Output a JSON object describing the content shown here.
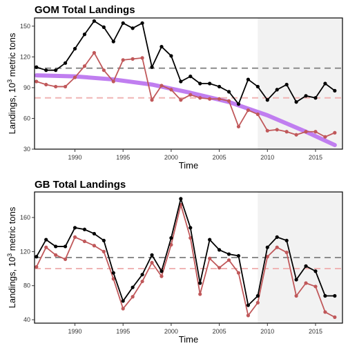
{
  "colors": {
    "black_series": "#000000",
    "red_series": "#c0585a",
    "trend": "#c07ef0",
    "black_ref": "#8c8c8c",
    "red_ref": "#f0b4b4",
    "shade": "#f2f2f2"
  },
  "chart_data": [
    {
      "type": "line",
      "title": "GOM Total Landings",
      "xlabel": "Time",
      "ylabel_main": "Landings, 10",
      "ylabel_sup": "3",
      "ylabel_rest": " metric tons",
      "xlim": [
        1985.8,
        2017.8
      ],
      "ylim": [
        30,
        158
      ],
      "xticks": [
        1990,
        1995,
        2000,
        2005,
        2010,
        2015
      ],
      "yticks": [
        30,
        60,
        90,
        120,
        150
      ],
      "shade_range": [
        2009,
        2017.8
      ],
      "hlines": [
        {
          "series": "black",
          "y": 109
        },
        {
          "series": "red",
          "y": 80
        }
      ],
      "x": [
        1986,
        1987,
        1988,
        1989,
        1990,
        1991,
        1992,
        1993,
        1994,
        1995,
        1996,
        1997,
        1998,
        1999,
        2000,
        2001,
        2002,
        2003,
        2004,
        2005,
        2006,
        2007,
        2008,
        2009,
        2010,
        2011,
        2012,
        2013,
        2014,
        2015,
        2016,
        2017
      ],
      "series": [
        {
          "color_key": "black_series",
          "values": [
            110,
            107,
            107,
            114,
            128,
            142,
            155,
            149,
            135,
            153,
            148,
            153,
            110,
            130,
            121,
            96,
            101,
            94,
            94,
            91,
            86,
            74,
            98,
            91,
            78,
            88,
            93,
            76,
            82,
            80,
            94,
            87
          ]
        },
        {
          "color_key": "red_series",
          "values": [
            96,
            93,
            91,
            91,
            100,
            111,
            124,
            107,
            96,
            117,
            118,
            119,
            78,
            92,
            88,
            78,
            83,
            80,
            79,
            79,
            77,
            52,
            68,
            64,
            48,
            49,
            47,
            44,
            47,
            47,
            42,
            46
          ]
        }
      ],
      "trend": {
        "x": [
          1986,
          1990,
          1994,
          1998,
          2002,
          2006,
          2010,
          2014,
          2017
        ],
        "values": [
          102,
          101,
          98,
          93,
          85,
          76,
          63,
          47,
          34
        ]
      }
    },
    {
      "type": "line",
      "title": "GB Total Landings",
      "xlabel": "Time",
      "ylabel_main": "Landings, 10",
      "ylabel_sup": "3",
      "ylabel_rest": " metric tons",
      "xlim": [
        1985.8,
        2017.8
      ],
      "ylim": [
        36,
        190
      ],
      "xticks": [
        1990,
        1995,
        2000,
        2005,
        2010,
        2015
      ],
      "yticks": [
        40,
        80,
        120,
        160
      ],
      "shade_range": [
        2009,
        2017.8
      ],
      "hlines": [
        {
          "series": "black",
          "y": 113
        },
        {
          "series": "red",
          "y": 100
        }
      ],
      "x": [
        1986,
        1987,
        1988,
        1989,
        1990,
        1991,
        1992,
        1993,
        1994,
        1995,
        1996,
        1997,
        1998,
        1999,
        2000,
        2001,
        2002,
        2003,
        2004,
        2005,
        2006,
        2007,
        2008,
        2009,
        2010,
        2011,
        2012,
        2013,
        2014,
        2015,
        2016,
        2017
      ],
      "series": [
        {
          "color_key": "black_series",
          "values": [
            114,
            134,
            126,
            126,
            148,
            146,
            141,
            133,
            95,
            62,
            78,
            93,
            116,
            97,
            136,
            182,
            148,
            83,
            134,
            122,
            117,
            115,
            57,
            68,
            125,
            137,
            133,
            87,
            103,
            97,
            68,
            68
          ]
        },
        {
          "color_key": "red_series",
          "values": [
            102,
            125,
            116,
            111,
            137,
            132,
            127,
            120,
            88,
            53,
            67,
            85,
            107,
            91,
            128,
            175,
            136,
            70,
            112,
            101,
            110,
            95,
            45,
            60,
            114,
            125,
            119,
            68,
            83,
            79,
            49,
            43
          ]
        }
      ]
    }
  ]
}
